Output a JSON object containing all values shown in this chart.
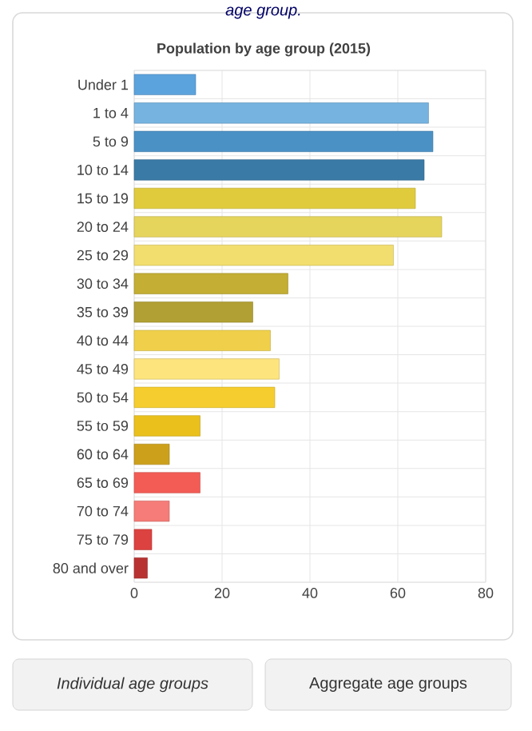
{
  "chart_data": {
    "type": "bar",
    "orientation": "horizontal",
    "title": "Population by age group (2015)",
    "categories": [
      "Under 1",
      "1 to 4",
      "5 to 9",
      "10 to 14",
      "15 to 19",
      "20 to 24",
      "25 to 29",
      "30 to 34",
      "35 to 39",
      "40 to 44",
      "45 to 49",
      "50 to 54",
      "55 to 59",
      "60 to 64",
      "65 to 69",
      "70 to 74",
      "75 to 79",
      "80 and over"
    ],
    "values": [
      14,
      67,
      68,
      66,
      64,
      70,
      59,
      35,
      27,
      31,
      33,
      32,
      15,
      8,
      15,
      8,
      4,
      3
    ],
    "colors": [
      "#5ba3dc",
      "#76b3e0",
      "#4a92c6",
      "#3a7aa6",
      "#e0cb3c",
      "#e6d55c",
      "#f2de6e",
      "#c4ae34",
      "#b1a033",
      "#f0d04a",
      "#fde47c",
      "#f6cd2e",
      "#eac01c",
      "#cca01a",
      "#f25c55",
      "#f57c78",
      "#dc4240",
      "#b83232"
    ],
    "xlim": [
      0,
      80
    ],
    "xticks": [
      0,
      20,
      40,
      60,
      80
    ],
    "grid": true,
    "annotations": [
      "age group.",
      "Individual age groups",
      "Aggregate age groups"
    ]
  }
}
